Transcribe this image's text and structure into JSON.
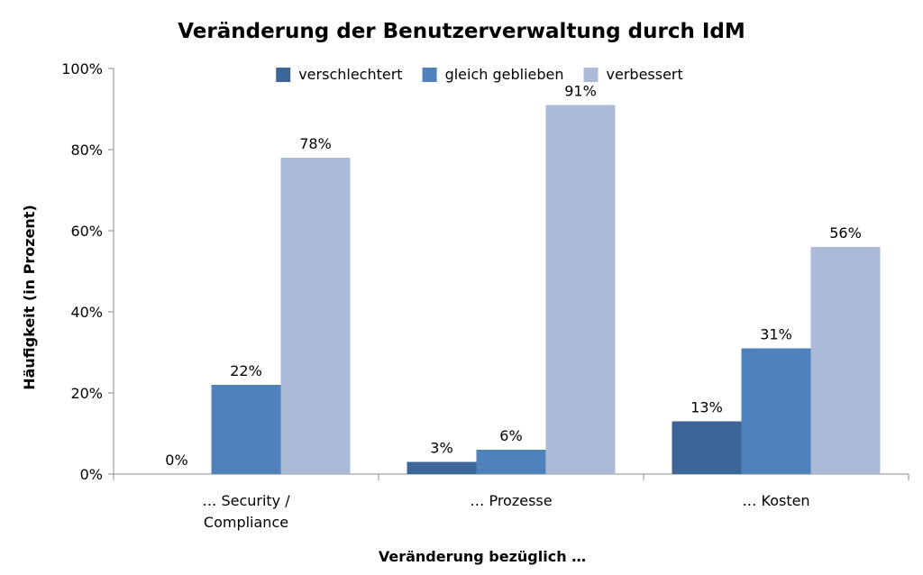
{
  "chart_data": {
    "type": "bar",
    "title": "Veränderung der Benutzerverwaltung durch IdM",
    "xlabel": "Veränderung bezüglich …",
    "ylabel": "Häufigkeit (in Prozent)",
    "ylim": [
      0,
      100
    ],
    "yticks": [
      "0%",
      "20%",
      "40%",
      "60%",
      "80%",
      "100%"
    ],
    "categories": [
      [
        "… Security /",
        "Compliance"
      ],
      [
        "… Prozesse"
      ],
      [
        "… Kosten"
      ]
    ],
    "series": [
      {
        "name": "verschlechtert",
        "color": "#3d6698",
        "values": [
          0,
          3,
          13
        ],
        "labels": [
          "0%",
          "3%",
          "13%"
        ]
      },
      {
        "name": "gleich geblieben",
        "color": "#4f81bd",
        "values": [
          22,
          6,
          31
        ],
        "labels": [
          "22%",
          "6%",
          "31%"
        ]
      },
      {
        "name": "verbessert",
        "color": "#aabad7",
        "values": [
          78,
          91,
          56
        ],
        "labels": [
          "78%",
          "91%",
          "56%"
        ]
      }
    ],
    "legend_position": "top",
    "grid": false
  }
}
